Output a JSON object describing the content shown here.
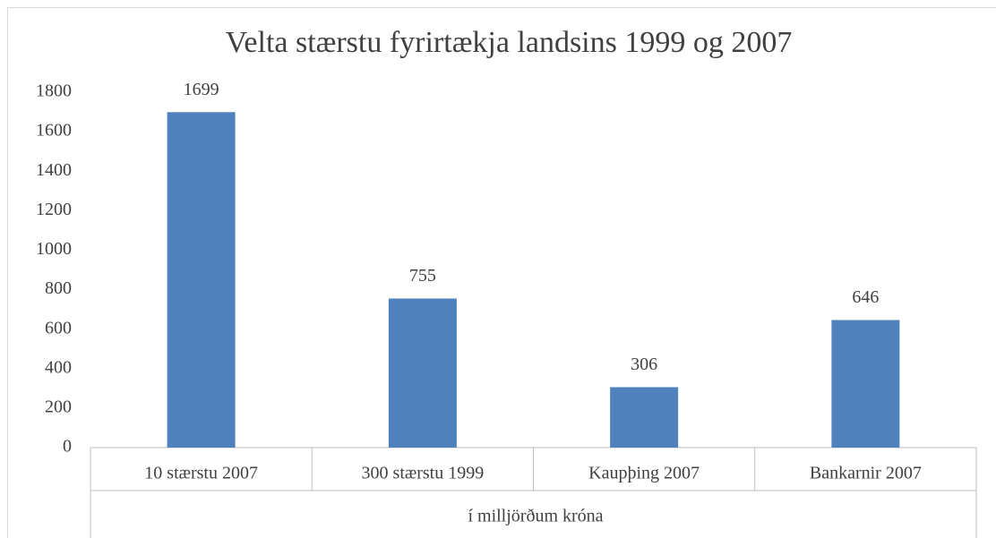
{
  "chart_data": {
    "type": "bar",
    "title": "Velta stærstu fyrirtækja landsins 1999 og 2007",
    "categories": [
      "10 stærstu 2007",
      "300 stærstu 1999",
      "Kaupþing 2007",
      "Bankarnir 2007"
    ],
    "values": [
      1699,
      755,
      306,
      646
    ],
    "color": "#4f81bd",
    "x_label": "í milljörðum króna",
    "ylim": [
      0,
      1800
    ],
    "yticks": [
      0,
      200,
      400,
      600,
      800,
      1000,
      1200,
      1400,
      1600,
      1800
    ],
    "grid": false
  }
}
